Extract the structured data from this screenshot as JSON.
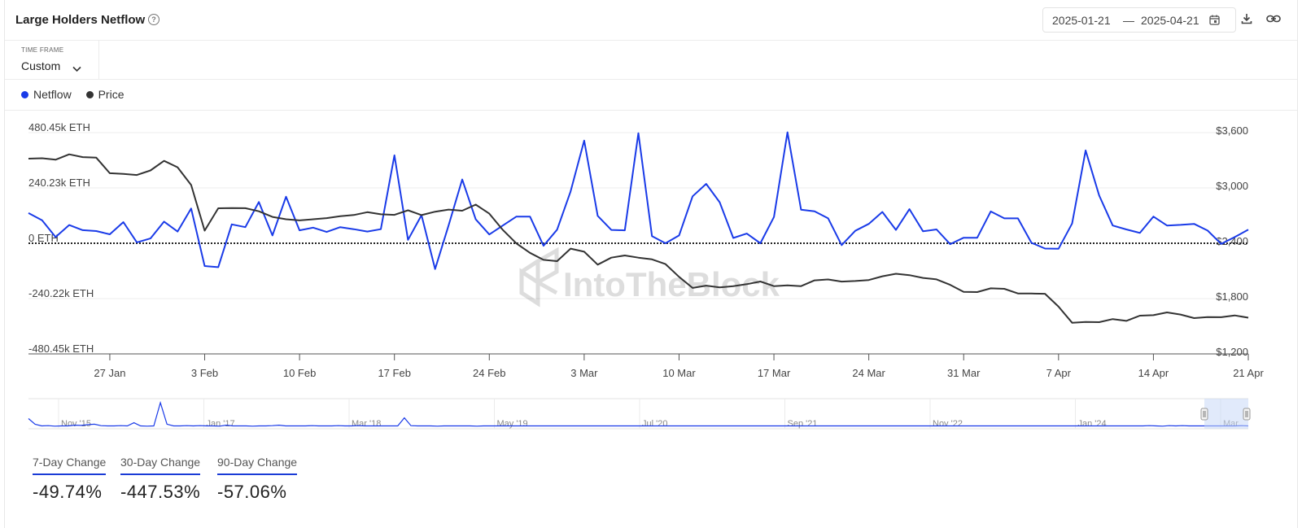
{
  "header": {
    "title": "Large Holders Netflow",
    "date_from": "2025-01-21",
    "date_sep": "—",
    "date_to": "2025-04-21"
  },
  "timeframe": {
    "label": "TIME FRAME",
    "value": "Custom"
  },
  "legend": [
    {
      "name": "Netflow",
      "color": "#1a3be8"
    },
    {
      "name": "Price",
      "color": "#333333"
    }
  ],
  "watermark": "IntoTheBlock",
  "chart_data": {
    "type": "line",
    "x_start": "2025-01-21",
    "x_end": "2025-04-21",
    "x_ticks": [
      {
        "date": "2025-01-27",
        "label": "27 Jan"
      },
      {
        "date": "2025-02-03",
        "label": "3 Feb"
      },
      {
        "date": "2025-02-10",
        "label": "10 Feb"
      },
      {
        "date": "2025-02-17",
        "label": "17 Feb"
      },
      {
        "date": "2025-02-24",
        "label": "24 Feb"
      },
      {
        "date": "2025-03-03",
        "label": "3 Mar"
      },
      {
        "date": "2025-03-10",
        "label": "10 Mar"
      },
      {
        "date": "2025-03-17",
        "label": "17 Mar"
      },
      {
        "date": "2025-03-24",
        "label": "24 Mar"
      },
      {
        "date": "2025-03-31",
        "label": "31 Mar"
      },
      {
        "date": "2025-04-07",
        "label": "7 Apr"
      },
      {
        "date": "2025-04-14",
        "label": "14 Apr"
      },
      {
        "date": "2025-04-21",
        "label": "21 Apr"
      }
    ],
    "y_left": {
      "unit": "ETH",
      "range": [
        -480450,
        480450
      ],
      "ticks": [
        {
          "value": 480450,
          "label": "480.45k ETH"
        },
        {
          "value": 240230,
          "label": "240.23k ETH"
        },
        {
          "value": 0,
          "label": "0 ETH"
        },
        {
          "value": -240220,
          "label": "-240.22k ETH"
        },
        {
          "value": -480450,
          "label": "-480.45k ETH"
        }
      ]
    },
    "y_right": {
      "unit": "USD",
      "range": [
        1200,
        3600
      ],
      "ticks": [
        {
          "value": 3600,
          "label": "$3,600"
        },
        {
          "value": 3000,
          "label": "$3,000"
        },
        {
          "value": 2400,
          "label": "$2,400"
        },
        {
          "value": 1800,
          "label": "$1,800"
        },
        {
          "value": 1200,
          "label": "$1,200"
        }
      ]
    },
    "zero_line": "dotted",
    "grid": true,
    "series": [
      {
        "name": "Netflow",
        "axis": "left",
        "color": "#1a3be8",
        "points": [
          [
            "2025-01-21",
            131000
          ],
          [
            "2025-01-22",
            100000
          ],
          [
            "2025-01-23",
            27000
          ],
          [
            "2025-01-24",
            79000
          ],
          [
            "2025-01-25",
            57000
          ],
          [
            "2025-01-26",
            53000
          ],
          [
            "2025-01-27",
            39000
          ],
          [
            "2025-01-28",
            92000
          ],
          [
            "2025-01-29",
            4000
          ],
          [
            "2025-01-30",
            21000
          ],
          [
            "2025-01-31",
            94000
          ],
          [
            "2025-02-01",
            51000
          ],
          [
            "2025-02-02",
            151000
          ],
          [
            "2025-02-03",
            -99000
          ],
          [
            "2025-02-04",
            -104000
          ],
          [
            "2025-02-05",
            82000
          ],
          [
            "2025-02-06",
            70000
          ],
          [
            "2025-02-07",
            179000
          ],
          [
            "2025-02-08",
            34000
          ],
          [
            "2025-02-09",
            202000
          ],
          [
            "2025-02-10",
            56000
          ],
          [
            "2025-02-11",
            68000
          ],
          [
            "2025-02-12",
            49000
          ],
          [
            "2025-02-13",
            70000
          ],
          [
            "2025-02-14",
            61000
          ],
          [
            "2025-02-15",
            51000
          ],
          [
            "2025-02-16",
            61000
          ],
          [
            "2025-02-17",
            382000
          ],
          [
            "2025-02-18",
            15000
          ],
          [
            "2025-02-19",
            122000
          ],
          [
            "2025-02-20",
            -112000
          ],
          [
            "2025-02-21",
            78000
          ],
          [
            "2025-02-22",
            277000
          ],
          [
            "2025-02-23",
            104000
          ],
          [
            "2025-02-24",
            38000
          ],
          [
            "2025-02-25",
            77000
          ],
          [
            "2025-02-26",
            116000
          ],
          [
            "2025-02-27",
            116000
          ],
          [
            "2025-02-28",
            -11000
          ],
          [
            "2025-03-01",
            59000
          ],
          [
            "2025-03-02",
            225000
          ],
          [
            "2025-03-03",
            446000
          ],
          [
            "2025-03-04",
            119000
          ],
          [
            "2025-03-05",
            58000
          ],
          [
            "2025-03-06",
            56000
          ],
          [
            "2025-03-07",
            478000
          ],
          [
            "2025-03-08",
            31000
          ],
          [
            "2025-03-09",
            0
          ],
          [
            "2025-03-10",
            34000
          ],
          [
            "2025-03-11",
            204000
          ],
          [
            "2025-03-12",
            258000
          ],
          [
            "2025-03-13",
            178000
          ],
          [
            "2025-03-14",
            23000
          ],
          [
            "2025-03-15",
            42000
          ],
          [
            "2025-03-16",
            0
          ],
          [
            "2025-03-17",
            114000
          ],
          [
            "2025-03-18",
            482000
          ],
          [
            "2025-03-19",
            146000
          ],
          [
            "2025-03-20",
            139000
          ],
          [
            "2025-03-21",
            108000
          ],
          [
            "2025-03-22",
            -8000
          ],
          [
            "2025-03-23",
            54000
          ],
          [
            "2025-03-24",
            84000
          ],
          [
            "2025-03-25",
            136000
          ],
          [
            "2025-03-26",
            58000
          ],
          [
            "2025-03-27",
            148000
          ],
          [
            "2025-03-28",
            52000
          ],
          [
            "2025-03-29",
            60000
          ],
          [
            "2025-03-30",
            -4000
          ],
          [
            "2025-03-31",
            24000
          ],
          [
            "2025-04-01",
            24000
          ],
          [
            "2025-04-02",
            138000
          ],
          [
            "2025-04-03",
            108000
          ],
          [
            "2025-04-04",
            108000
          ],
          [
            "2025-04-05",
            2000
          ],
          [
            "2025-04-06",
            -23000
          ],
          [
            "2025-04-07",
            -24000
          ],
          [
            "2025-04-08",
            86000
          ],
          [
            "2025-04-09",
            403000
          ],
          [
            "2025-04-10",
            207000
          ],
          [
            "2025-04-11",
            77000
          ],
          [
            "2025-04-12",
            60000
          ],
          [
            "2025-04-13",
            45000
          ],
          [
            "2025-04-14",
            116000
          ],
          [
            "2025-04-15",
            77000
          ],
          [
            "2025-04-16",
            80000
          ],
          [
            "2025-04-17",
            84000
          ],
          [
            "2025-04-18",
            55000
          ],
          [
            "2025-04-19",
            -3000
          ],
          [
            "2025-04-20",
            27000
          ],
          [
            "2025-04-21",
            59000
          ]
        ]
      },
      {
        "name": "Price",
        "axis": "right",
        "color": "#333333",
        "points": [
          [
            "2025-01-21",
            3318
          ],
          [
            "2025-01-22",
            3322
          ],
          [
            "2025-01-23",
            3306
          ],
          [
            "2025-01-24",
            3364
          ],
          [
            "2025-01-25",
            3334
          ],
          [
            "2025-01-26",
            3328
          ],
          [
            "2025-01-27",
            3160
          ],
          [
            "2025-01-28",
            3153
          ],
          [
            "2025-01-29",
            3140
          ],
          [
            "2025-01-30",
            3190
          ],
          [
            "2025-01-31",
            3294
          ],
          [
            "2025-02-01",
            3224
          ],
          [
            "2025-02-02",
            3032
          ],
          [
            "2025-02-03",
            2537
          ],
          [
            "2025-02-04",
            2779
          ],
          [
            "2025-02-05",
            2782
          ],
          [
            "2025-02-06",
            2780
          ],
          [
            "2025-02-07",
            2747
          ],
          [
            "2025-02-08",
            2686
          ],
          [
            "2025-02-09",
            2660
          ],
          [
            "2025-02-10",
            2648
          ],
          [
            "2025-02-11",
            2660
          ],
          [
            "2025-02-12",
            2673
          ],
          [
            "2025-02-13",
            2694
          ],
          [
            "2025-02-14",
            2706
          ],
          [
            "2025-02-15",
            2737
          ],
          [
            "2025-02-16",
            2714
          ],
          [
            "2025-02-17",
            2708
          ],
          [
            "2025-02-18",
            2757
          ],
          [
            "2025-02-19",
            2705
          ],
          [
            "2025-02-20",
            2742
          ],
          [
            "2025-02-21",
            2765
          ],
          [
            "2025-02-22",
            2753
          ],
          [
            "2025-02-23",
            2819
          ],
          [
            "2025-02-24",
            2721
          ],
          [
            "2025-02-25",
            2545
          ],
          [
            "2025-02-26",
            2398
          ],
          [
            "2025-02-27",
            2296
          ],
          [
            "2025-02-28",
            2220
          ],
          [
            "2025-03-01",
            2206
          ],
          [
            "2025-03-02",
            2342
          ],
          [
            "2025-03-03",
            2308
          ],
          [
            "2025-03-04",
            2168
          ],
          [
            "2025-03-05",
            2244
          ],
          [
            "2025-03-06",
            2268
          ],
          [
            "2025-03-07",
            2244
          ],
          [
            "2025-03-08",
            2225
          ],
          [
            "2025-03-09",
            2174
          ],
          [
            "2025-03-10",
            2036
          ],
          [
            "2025-03-11",
            1916
          ],
          [
            "2025-03-12",
            1940
          ],
          [
            "2025-03-13",
            1921
          ],
          [
            "2025-03-14",
            1935
          ],
          [
            "2025-03-15",
            1956
          ],
          [
            "2025-03-16",
            1985
          ],
          [
            "2025-03-17",
            1935
          ],
          [
            "2025-03-18",
            1943
          ],
          [
            "2025-03-19",
            1935
          ],
          [
            "2025-03-20",
            1998
          ],
          [
            "2025-03-21",
            2007
          ],
          [
            "2025-03-22",
            1984
          ],
          [
            "2025-03-23",
            1991
          ],
          [
            "2025-03-24",
            2001
          ],
          [
            "2025-03-25",
            2042
          ],
          [
            "2025-03-26",
            2069
          ],
          [
            "2025-03-27",
            2054
          ],
          [
            "2025-03-28",
            2024
          ],
          [
            "2025-03-29",
            2008
          ],
          [
            "2025-03-30",
            1949
          ],
          [
            "2025-03-31",
            1872
          ],
          [
            "2025-04-01",
            1871
          ],
          [
            "2025-04-02",
            1911
          ],
          [
            "2025-04-03",
            1906
          ],
          [
            "2025-04-04",
            1856
          ],
          [
            "2025-04-05",
            1855
          ],
          [
            "2025-04-06",
            1852
          ],
          [
            "2025-04-07",
            1713
          ],
          [
            "2025-04-08",
            1538
          ],
          [
            "2025-04-09",
            1546
          ],
          [
            "2025-04-10",
            1544
          ],
          [
            "2025-04-11",
            1578
          ],
          [
            "2025-04-12",
            1558
          ],
          [
            "2025-04-13",
            1615
          ],
          [
            "2025-04-14",
            1620
          ],
          [
            "2025-04-15",
            1650
          ],
          [
            "2025-04-16",
            1627
          ],
          [
            "2025-04-17",
            1588
          ],
          [
            "2025-04-18",
            1600
          ],
          [
            "2025-04-19",
            1598
          ],
          [
            "2025-04-20",
            1617
          ],
          [
            "2025-04-21",
            1593
          ]
        ]
      }
    ]
  },
  "navigator": {
    "labels": [
      "Nov '15",
      "Jan '17",
      "Mar '18",
      "May '19",
      "Jul '20",
      "Sep '21",
      "Nov '22",
      "Jan '24",
      "Mar"
    ],
    "values": [
      0.35,
      0.12,
      0.05,
      0.06,
      0.04,
      0.05,
      0.05,
      0.08,
      0.07,
      0.1,
      0.12,
      0.06,
      0.05,
      0.05,
      0.06,
      0.05,
      0.18,
      0.05,
      0.04,
      0.05,
      1.0,
      0.12,
      0.05,
      0.05,
      0.06,
      0.05,
      0.06,
      0.05,
      0.05,
      0.04,
      0.08,
      0.05,
      0.05,
      0.05,
      0.04,
      0.05,
      0.05,
      0.06,
      0.08,
      0.05,
      0.05,
      0.05,
      0.05,
      0.06,
      0.05,
      0.05,
      0.05,
      0.06,
      0.05,
      0.05,
      0.06,
      0.05,
      0.05,
      0.05,
      0.05,
      0.05,
      0.05,
      0.38,
      0.06,
      0.05,
      0.05,
      0.05,
      0.04,
      0.05,
      0.05,
      0.05,
      0.05,
      0.05,
      0.04,
      0.05,
      0.05,
      0.05,
      0.05,
      0.05,
      0.05,
      0.05,
      0.05,
      0.05,
      0.05,
      0.05,
      0.05,
      0.05,
      0.05,
      0.05,
      0.05,
      0.05,
      0.05,
      0.05,
      0.05,
      0.05,
      0.05,
      0.05,
      0.05,
      0.05,
      0.05,
      0.05,
      0.05,
      0.05,
      0.05,
      0.05,
      0.05,
      0.05,
      0.05,
      0.05,
      0.05,
      0.05,
      0.05,
      0.05,
      0.05,
      0.05,
      0.05,
      0.05,
      0.05,
      0.05,
      0.05,
      0.05,
      0.05,
      0.05,
      0.05,
      0.05,
      0.05,
      0.05,
      0.05,
      0.05,
      0.05,
      0.05,
      0.05,
      0.05,
      0.05,
      0.05,
      0.05,
      0.05,
      0.05,
      0.05,
      0.05,
      0.05,
      0.05,
      0.05,
      0.05,
      0.05,
      0.05,
      0.05,
      0.05,
      0.05,
      0.05,
      0.05,
      0.05,
      0.05,
      0.05,
      0.05,
      0.05,
      0.05,
      0.05,
      0.05,
      0.05,
      0.05,
      0.05,
      0.05,
      0.05,
      0.05,
      0.05,
      0.05,
      0.05,
      0.05,
      0.05,
      0.05,
      0.05,
      0.05,
      0.05,
      0.05,
      0.06,
      0.05,
      0.04,
      0.06,
      0.05,
      0.06,
      0.05,
      0.05,
      0.05,
      0.05,
      0.05,
      0.05,
      0.05,
      0.05,
      0.06,
      0.05
    ]
  },
  "stats": [
    {
      "label": "7-Day Change",
      "value": "-49.74%"
    },
    {
      "label": "30-Day Change",
      "value": "-447.53%"
    },
    {
      "label": "90-Day Change",
      "value": "-57.06%"
    }
  ]
}
